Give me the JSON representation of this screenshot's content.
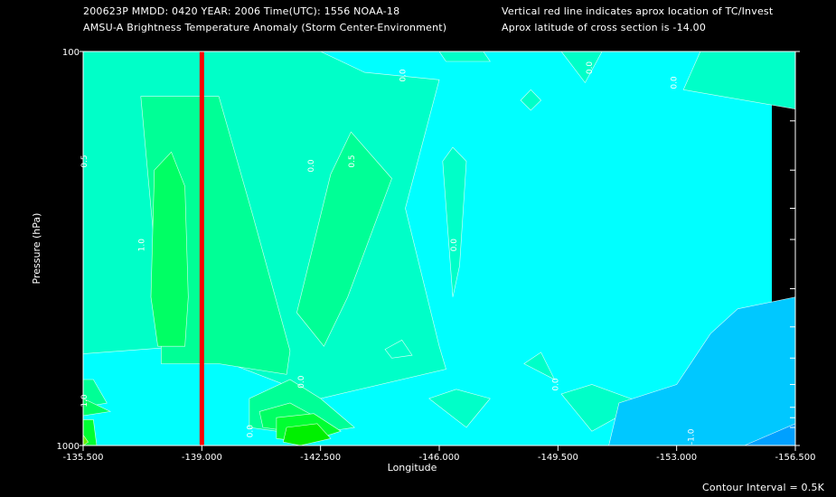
{
  "header": {
    "line1_left": "200623P  MMDD: 0420 YEAR: 2006 Time(UTC): 1556 NOAA-18",
    "line2_left": "AMSU-A Brightness Temperature Anomaly (Storm Center-Environment)",
    "line1_right": "Vertical red line indicates aprox location of TC/Invest",
    "line2_right": "Aprox latitude of cross section is -14.00"
  },
  "footer": {
    "contour_interval": "Contour Interval = 0.5K"
  },
  "colors": {
    "background": "#000000",
    "level_neg1": "#00a0ff",
    "level_neg05": "#00c8ff",
    "level_0": "#00ffff",
    "level_05": "#00ffc8",
    "level_1": "#00ff96",
    "level_15": "#00ff64",
    "level_2": "#00ff32",
    "level_25": "#00f000",
    "level_3": "#64f000",
    "level_4": "#c8ff00",
    "level_5": "#ffff00",
    "tc_line": "#ff0000"
  },
  "chart_data": {
    "type": "heatmap",
    "title": "AMSU-A Brightness Temperature Anomaly (Storm Center-Environment)",
    "xlabel": "Longitude",
    "ylabel": "Pressure (hPa)",
    "xlim": [
      -135.5,
      -156.5
    ],
    "ylim": [
      1000,
      100
    ],
    "y_scale": "log",
    "x_ticks": [
      "-135.500",
      "-139.000",
      "-142.500",
      "-146.000",
      "-149.500",
      "-153.000",
      "-156.500"
    ],
    "y_ticks": [
      "100",
      "1000"
    ],
    "y_minor_ticks": [
      150,
      200,
      250,
      300,
      400,
      500,
      600,
      700,
      800,
      850,
      900
    ],
    "tc_longitude": -139.0,
    "contour_interval": 0.5,
    "contour_labels": [
      {
        "text": "0.0",
        "x": -140.5,
        "y": 920
      },
      {
        "text": "0.0",
        "x": -142.0,
        "y": 690
      },
      {
        "text": "0.0",
        "x": -142.3,
        "y": 195
      },
      {
        "text": "0.0",
        "x": -146.5,
        "y": 310
      },
      {
        "text": "0.0",
        "x": -149.5,
        "y": 700
      },
      {
        "text": "0.0",
        "x": -150.5,
        "y": 110
      },
      {
        "text": "0.0",
        "x": -153.0,
        "y": 120
      },
      {
        "text": "0.0",
        "x": -145.0,
        "y": 115
      },
      {
        "text": "0.5",
        "x": -143.5,
        "y": 190
      },
      {
        "text": "0.5",
        "x": -135.6,
        "y": 190
      },
      {
        "text": "1.0",
        "x": -137.3,
        "y": 310
      },
      {
        "text": "1.0",
        "x": -135.6,
        "y": 770
      },
      {
        "text": "-1.0",
        "x": -153.5,
        "y": 950
      }
    ],
    "regions": [
      {
        "level": 0.5,
        "points": [
          [
            -135.5,
            100
          ],
          [
            -142.5,
            100
          ],
          [
            -143.8,
            113
          ],
          [
            -146,
            118
          ],
          [
            -145,
            250
          ],
          [
            -146,
            560
          ],
          [
            -146.2,
            640
          ],
          [
            -142.5,
            760
          ],
          [
            -138.5,
            560
          ],
          [
            -135.5,
            585
          ]
        ]
      },
      {
        "level": 0.5,
        "points": [
          [
            -151.2,
            100
          ],
          [
            -153.7,
            100
          ],
          [
            -153.2,
            125
          ],
          [
            -156.5,
            140
          ],
          [
            -156.5,
            100
          ]
        ]
      },
      {
        "level": 0.5,
        "points": [
          [
            -147.3,
            100
          ],
          [
            -146,
            100
          ],
          [
            -146.2,
            106
          ],
          [
            -147.5,
            106
          ]
        ]
      },
      {
        "level": 0.5,
        "points": [
          [
            -150.8,
            100
          ],
          [
            -149.6,
            100
          ],
          [
            -150.3,
            120
          ]
        ]
      },
      {
        "level": 0.5,
        "points": [
          [
            -148.4,
            133
          ],
          [
            -148.7,
            125
          ],
          [
            -149,
            133
          ],
          [
            -148.7,
            141
          ]
        ]
      },
      {
        "level": 0.5,
        "points": [
          [
            -146.1,
            190
          ],
          [
            -146.4,
            175
          ],
          [
            -146.8,
            190
          ],
          [
            -146.6,
            350
          ],
          [
            -146.4,
            420
          ]
        ]
      },
      {
        "level": 0.5,
        "points": [
          [
            -144.4,
            570
          ],
          [
            -144.9,
            540
          ],
          [
            -145.2,
            590
          ],
          [
            -144.6,
            600
          ]
        ]
      },
      {
        "level": 0.5,
        "points": [
          [
            -145.7,
            760
          ],
          [
            -146.5,
            720
          ],
          [
            -147.5,
            760
          ],
          [
            -146.8,
            900
          ]
        ]
      },
      {
        "level": 0.5,
        "points": [
          [
            -148.5,
            620
          ],
          [
            -149,
            580
          ],
          [
            -149.4,
            680
          ]
        ]
      },
      {
        "level": 0.5,
        "points": [
          [
            -149.6,
            740
          ],
          [
            -150.5,
            700
          ],
          [
            -152,
            780
          ],
          [
            -150.5,
            920
          ]
        ]
      },
      {
        "level": 1.0,
        "points": [
          [
            -137.2,
            130
          ],
          [
            -139.5,
            130
          ],
          [
            -140.5,
            260
          ],
          [
            -141.6,
            575
          ],
          [
            -141.5,
            660
          ],
          [
            -139.5,
            620
          ],
          [
            -137.8,
            620
          ],
          [
            -137.8,
            480
          ]
        ]
      },
      {
        "level": 1.0,
        "points": [
          [
            -142.8,
            205
          ],
          [
            -143.4,
            160
          ],
          [
            -144.6,
            210
          ],
          [
            -143.3,
            420
          ],
          [
            -142.6,
            560
          ],
          [
            -141.8,
            460
          ]
        ]
      },
      {
        "level": 1.0,
        "points": [
          [
            -140.4,
            760
          ],
          [
            -141.6,
            680
          ],
          [
            -142.5,
            760
          ],
          [
            -143.5,
            900
          ],
          [
            -142,
            940
          ],
          [
            -140.4,
            900
          ]
        ]
      },
      {
        "level": 1.0,
        "points": [
          [
            -135.5,
            680
          ],
          [
            -135.8,
            680
          ],
          [
            -136.2,
            780
          ],
          [
            -135.5,
            800
          ]
        ]
      },
      {
        "level": 1.5,
        "points": [
          [
            -137.6,
            200
          ],
          [
            -138.1,
            180
          ],
          [
            -138.5,
            220
          ],
          [
            -138.6,
            420
          ],
          [
            -138.5,
            560
          ],
          [
            -137.7,
            560
          ],
          [
            -137.5,
            420
          ]
        ]
      },
      {
        "level": 1.5,
        "points": [
          [
            -140.7,
            820
          ],
          [
            -141.6,
            780
          ],
          [
            -142.5,
            860
          ],
          [
            -142,
            930
          ],
          [
            -140.8,
            900
          ]
        ]
      },
      {
        "level": 1.5,
        "points": [
          [
            -135.5,
            760
          ],
          [
            -136.3,
            820
          ],
          [
            -135.5,
            840
          ]
        ]
      },
      {
        "level": -0.5,
        "points": [
          [
            -154.8,
            450
          ],
          [
            -156.5,
            420
          ],
          [
            -156.5,
            1000
          ],
          [
            -151,
            1000
          ],
          [
            -151.3,
            780
          ],
          [
            -153,
            700
          ],
          [
            -154,
            520
          ]
        ]
      },
      {
        "level": -1.0,
        "points": [
          [
            -155,
            1000
          ],
          [
            -156.5,
            880
          ],
          [
            -156.5,
            1000
          ]
        ]
      },
      {
        "level": 2.0,
        "points": [
          [
            -141.2,
            850
          ],
          [
            -142.3,
            830
          ],
          [
            -143.1,
            920
          ],
          [
            -142.1,
            980
          ],
          [
            -141.2,
            960
          ]
        ]
      },
      {
        "level": 2.5,
        "points": [
          [
            -141.5,
            900
          ],
          [
            -142.4,
            880
          ],
          [
            -142.8,
            960
          ],
          [
            -141.9,
            1000
          ],
          [
            -141.4,
            980
          ]
        ]
      },
      {
        "level": 2.0,
        "points": [
          [
            -135.5,
            860
          ],
          [
            -135.8,
            860
          ],
          [
            -135.9,
            1000
          ],
          [
            -135.5,
            1000
          ]
        ]
      },
      {
        "level": 3.0,
        "points": [
          [
            -135.5,
            940
          ],
          [
            -135.65,
            980
          ],
          [
            -135.5,
            1000
          ]
        ]
      }
    ]
  }
}
